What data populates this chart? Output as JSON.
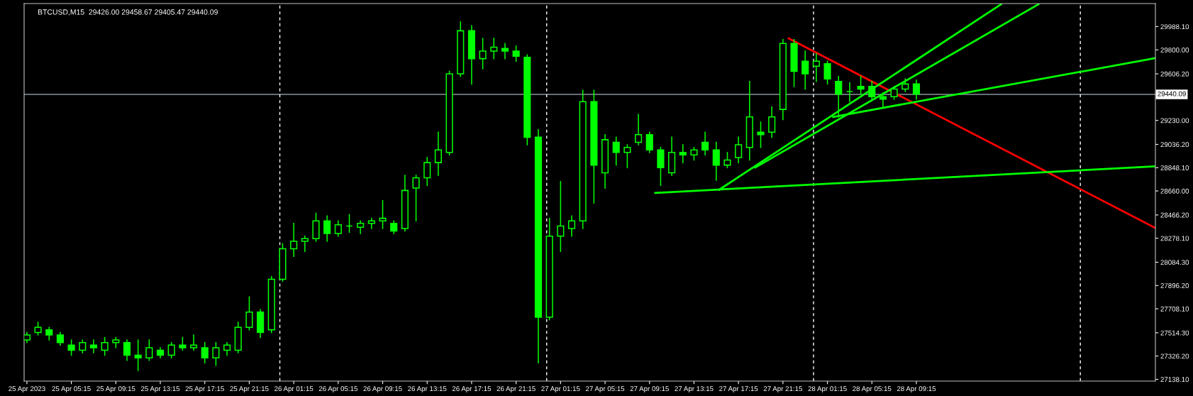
{
  "chart_data": {
    "type": "candlestick",
    "title": "BTCUSD,M15  29426.00 29458.67 29405.47 29440.09",
    "xlim": [
      "2023-04-25T01:00",
      "2023-04-29T06:45"
    ],
    "ylim": [
      27124,
      30174
    ],
    "xticks": [
      {
        "value": "2023-04-25T01:15",
        "label": "25 Apr 2023"
      },
      {
        "value": "2023-04-25T05:15",
        "label": "25 Apr 05:15"
      },
      {
        "value": "2023-04-25T09:15",
        "label": "25 Apr 09:15"
      },
      {
        "value": "2023-04-25T13:15",
        "label": "25 Apr 13:15"
      },
      {
        "value": "2023-04-25T17:15",
        "label": "25 Apr 17:15"
      },
      {
        "value": "2023-04-25T21:15",
        "label": "25 Apr 21:15"
      },
      {
        "value": "2023-04-26T01:15",
        "label": "26 Apr 01:15"
      },
      {
        "value": "2023-04-26T05:15",
        "label": "26 Apr 05:15"
      },
      {
        "value": "2023-04-26T09:15",
        "label": "26 Apr 09:15"
      },
      {
        "value": "2023-04-26T13:15",
        "label": "26 Apr 13:15"
      },
      {
        "value": "2023-04-26T17:15",
        "label": "26 Apr 17:15"
      },
      {
        "value": "2023-04-26T21:15",
        "label": "26 Apr 21:15"
      },
      {
        "value": "2023-04-27T01:15",
        "label": "27 Apr 01:15"
      },
      {
        "value": "2023-04-27T05:15",
        "label": "27 Apr 05:15"
      },
      {
        "value": "2023-04-27T09:15",
        "label": "27 Apr 09:15"
      },
      {
        "value": "2023-04-27T13:15",
        "label": "27 Apr 13:15"
      },
      {
        "value": "2023-04-27T17:15",
        "label": "27 Apr 17:15"
      },
      {
        "value": "2023-04-27T21:15",
        "label": "27 Apr 21:15"
      },
      {
        "value": "2023-04-28T01:15",
        "label": "28 Apr 01:15"
      },
      {
        "value": "2023-04-28T05:15",
        "label": "28 Apr 05:15"
      },
      {
        "value": "2023-04-28T09:15",
        "label": "28 Apr 09:15"
      }
    ],
    "yticks": [
      {
        "value": 29988.1,
        "label": "29988.10"
      },
      {
        "value": 29800,
        "label": "29800.00"
      },
      {
        "value": 29606.2,
        "label": "29606.20"
      },
      {
        "value": 29230,
        "label": "29230.00"
      },
      {
        "value": 29036.2,
        "label": "29036.20"
      },
      {
        "value": 28848.1,
        "label": "28848.10"
      },
      {
        "value": 28660,
        "label": "28660.00"
      },
      {
        "value": 28466.2,
        "label": "28466.20"
      },
      {
        "value": 28278.1,
        "label": "28278.10"
      },
      {
        "value": 28084.3,
        "label": "28084.30"
      },
      {
        "value": 27896.2,
        "label": "27896.20"
      },
      {
        "value": 27708.1,
        "label": "27708.10"
      },
      {
        "value": 27514.3,
        "label": "27514.30"
      },
      {
        "value": 27326.2,
        "label": "27326.20"
      },
      {
        "value": 27138.1,
        "label": "27138.10"
      }
    ],
    "grid": false,
    "ref_lines": [
      {
        "axis": "y",
        "value": 29440.09,
        "label": "29440.09",
        "color": "#8a949c",
        "line_style": "solid"
      },
      {
        "axis": "x",
        "value": "2023-04-26T00:00",
        "color": "#ffffff",
        "line_style": "dashed"
      },
      {
        "axis": "x",
        "value": "2023-04-27T00:00",
        "color": "#ffffff",
        "line_style": "dashed"
      },
      {
        "axis": "x",
        "value": "2023-04-28T00:00",
        "color": "#ffffff",
        "line_style": "dashed"
      },
      {
        "axis": "x",
        "value": "2023-04-29T00:00",
        "color": "#ffffff",
        "line_style": "dashed"
      }
    ],
    "color": "#00ff00",
    "x": [
      "2023-04-25T01:15",
      "2023-04-25T02:15",
      "2023-04-25T03:15",
      "2023-04-25T04:15",
      "2023-04-25T05:15",
      "2023-04-25T06:15",
      "2023-04-25T07:15",
      "2023-04-25T08:15",
      "2023-04-25T09:15",
      "2023-04-25T10:15",
      "2023-04-25T11:15",
      "2023-04-25T12:15",
      "2023-04-25T13:15",
      "2023-04-25T14:15",
      "2023-04-25T15:15",
      "2023-04-25T16:15",
      "2023-04-25T17:15",
      "2023-04-25T18:15",
      "2023-04-25T19:15",
      "2023-04-25T20:15",
      "2023-04-25T21:15",
      "2023-04-25T22:15",
      "2023-04-25T23:15",
      "2023-04-26T00:15",
      "2023-04-26T01:15",
      "2023-04-26T02:15",
      "2023-04-26T03:15",
      "2023-04-26T04:15",
      "2023-04-26T05:15",
      "2023-04-26T06:15",
      "2023-04-26T07:15",
      "2023-04-26T08:15",
      "2023-04-26T09:15",
      "2023-04-26T10:15",
      "2023-04-26T11:15",
      "2023-04-26T12:15",
      "2023-04-26T13:15",
      "2023-04-26T14:15",
      "2023-04-26T15:15",
      "2023-04-26T16:15",
      "2023-04-26T17:15",
      "2023-04-26T18:15",
      "2023-04-26T19:15",
      "2023-04-26T20:15",
      "2023-04-26T21:15",
      "2023-04-26T22:15",
      "2023-04-26T23:15",
      "2023-04-27T00:15",
      "2023-04-27T01:15",
      "2023-04-27T02:15",
      "2023-04-27T03:15",
      "2023-04-27T04:15",
      "2023-04-27T05:15",
      "2023-04-27T06:15",
      "2023-04-27T07:15",
      "2023-04-27T08:15",
      "2023-04-27T09:15",
      "2023-04-27T10:15",
      "2023-04-27T11:15",
      "2023-04-27T12:15",
      "2023-04-27T13:15",
      "2023-04-27T14:15",
      "2023-04-27T15:15",
      "2023-04-27T16:15",
      "2023-04-27T17:15",
      "2023-04-27T18:15",
      "2023-04-27T19:15",
      "2023-04-27T20:15",
      "2023-04-27T21:15",
      "2023-04-27T22:15",
      "2023-04-27T23:15",
      "2023-04-28T00:15",
      "2023-04-28T01:15",
      "2023-04-28T02:15",
      "2023-04-28T03:15",
      "2023-04-28T04:15",
      "2023-04-28T05:15",
      "2023-04-28T06:15",
      "2023-04-28T07:15",
      "2023-04-28T08:15",
      "2023-04-28T09:15"
    ],
    "ohlc": [
      [
        27456,
        27517,
        27435,
        27497
      ],
      [
        27517,
        27599,
        27497,
        27558
      ],
      [
        27538,
        27558,
        27456,
        27497
      ],
      [
        27497,
        27517,
        27415,
        27435
      ],
      [
        27415,
        27456,
        27333,
        27374
      ],
      [
        27374,
        27456,
        27353,
        27435
      ],
      [
        27415,
        27456,
        27353,
        27394
      ],
      [
        27374,
        27476,
        27333,
        27435
      ],
      [
        27435,
        27476,
        27394,
        27456
      ],
      [
        27435,
        27456,
        27292,
        27333
      ],
      [
        27333,
        27456,
        27210,
        27312
      ],
      [
        27312,
        27456,
        27292,
        27394
      ],
      [
        27374,
        27394,
        27312,
        27333
      ],
      [
        27333,
        27435,
        27312,
        27415
      ],
      [
        27415,
        27476,
        27374,
        27394
      ],
      [
        27394,
        27497,
        27374,
        27415
      ],
      [
        27394,
        27435,
        27271,
        27312
      ],
      [
        27312,
        27435,
        27251,
        27394
      ],
      [
        27374,
        27435,
        27333,
        27415
      ],
      [
        27374,
        27599,
        27353,
        27558
      ],
      [
        27558,
        27804,
        27538,
        27681
      ],
      [
        27681,
        27701,
        27476,
        27517
      ],
      [
        27538,
        27968,
        27517,
        27947
      ],
      [
        27947,
        28234,
        27930,
        28193
      ],
      [
        28193,
        28398,
        28132,
        28254
      ],
      [
        28254,
        28295,
        28172,
        28275
      ],
      [
        28275,
        28480,
        28254,
        28418
      ],
      [
        28418,
        28459,
        28254,
        28316
      ],
      [
        28316,
        28418,
        28295,
        28387
      ],
      [
        28377,
        28469,
        28326,
        28377
      ],
      [
        28367,
        28418,
        28316,
        28398
      ],
      [
        28398,
        28439,
        28357,
        28418
      ],
      [
        28418,
        28582,
        28357,
        28439
      ],
      [
        28398,
        28418,
        28316,
        28336
      ],
      [
        28357,
        28787,
        28336,
        28664
      ],
      [
        28684,
        28787,
        28418,
        28766
      ],
      [
        28766,
        28930,
        28705,
        28889
      ],
      [
        28889,
        29135,
        28787,
        28992
      ],
      [
        28971,
        29627,
        28951,
        29606
      ],
      [
        29606,
        30026,
        29586,
        29954
      ],
      [
        29954,
        29995,
        29524,
        29729
      ],
      [
        29729,
        29893,
        29647,
        29790
      ],
      [
        29790,
        29893,
        29729,
        29821
      ],
      [
        29811,
        29852,
        29729,
        29790
      ],
      [
        29790,
        29831,
        29708,
        29749
      ],
      [
        29739,
        29760,
        29033,
        29094
      ],
      [
        29094,
        29155,
        27271,
        27640
      ],
      [
        27640,
        28439,
        27620,
        28295
      ],
      [
        28295,
        28736,
        28172,
        28377
      ],
      [
        28357,
        28459,
        28295,
        28418
      ],
      [
        28418,
        29473,
        28357,
        29381
      ],
      [
        29381,
        29473,
        28562,
        28869
      ],
      [
        28807,
        29115,
        28684,
        29074
      ],
      [
        29053,
        29094,
        28869,
        28971
      ],
      [
        28971,
        29033,
        28848,
        29012
      ],
      [
        29053,
        29278,
        29033,
        29115
      ],
      [
        29115,
        29135,
        28971,
        28992
      ],
      [
        28992,
        29012,
        28705,
        28848
      ],
      [
        28807,
        29094,
        28787,
        28971
      ],
      [
        28971,
        29033,
        28889,
        28951
      ],
      [
        28951,
        29012,
        28910,
        28992
      ],
      [
        29053,
        29135,
        28951,
        28992
      ],
      [
        28992,
        29053,
        28746,
        28869
      ],
      [
        28869,
        28971,
        28848,
        28910
      ],
      [
        28930,
        29094,
        28889,
        29033
      ],
      [
        29012,
        29545,
        28910,
        29258
      ],
      [
        29135,
        29217,
        29012,
        29115
      ],
      [
        29135,
        29340,
        29094,
        29258
      ],
      [
        29319,
        29883,
        29237,
        29852
      ],
      [
        29852,
        29883,
        29504,
        29627
      ],
      [
        29708,
        29790,
        29483,
        29606
      ],
      [
        29668,
        29770,
        29545,
        29708
      ],
      [
        29688,
        29708,
        29524,
        29565
      ],
      [
        29545,
        29586,
        29258,
        29442
      ],
      [
        29463,
        29534,
        29381,
        29463
      ],
      [
        29504,
        29586,
        29442,
        29483
      ],
      [
        29504,
        29545,
        29401,
        29422
      ],
      [
        29422,
        29452,
        29340,
        29401
      ],
      [
        29422,
        29504,
        29401,
        29483
      ],
      [
        29483,
        29565,
        29463,
        29524
      ],
      [
        29524,
        29555,
        29401,
        29442
      ]
    ],
    "series": [
      {
        "type": "line",
        "color": "#ff0000",
        "x": [
          "2023-04-27T21:45",
          "2023-04-29T06:45"
        ],
        "values": [
          29893,
          28361
        ]
      },
      {
        "type": "line",
        "color": "#00ff00",
        "x": [
          "2023-04-27T09:45",
          "2023-04-29T06:45"
        ],
        "values": [
          28644,
          28859
        ]
      },
      {
        "type": "line",
        "color": "#00ff00",
        "x": [
          "2023-04-27T15:30",
          "2023-04-28T16:53"
        ],
        "values": [
          28669,
          30169
        ]
      },
      {
        "type": "line",
        "color": "#00ff00",
        "x": [
          "2023-04-27T18:45",
          "2023-04-28T20:15"
        ],
        "values": [
          28849,
          30169
        ]
      },
      {
        "type": "line",
        "color": "#00ff00",
        "x": [
          "2023-04-28T01:45",
          "2023-04-29T06:45"
        ],
        "values": [
          29258,
          29733
        ]
      }
    ]
  }
}
